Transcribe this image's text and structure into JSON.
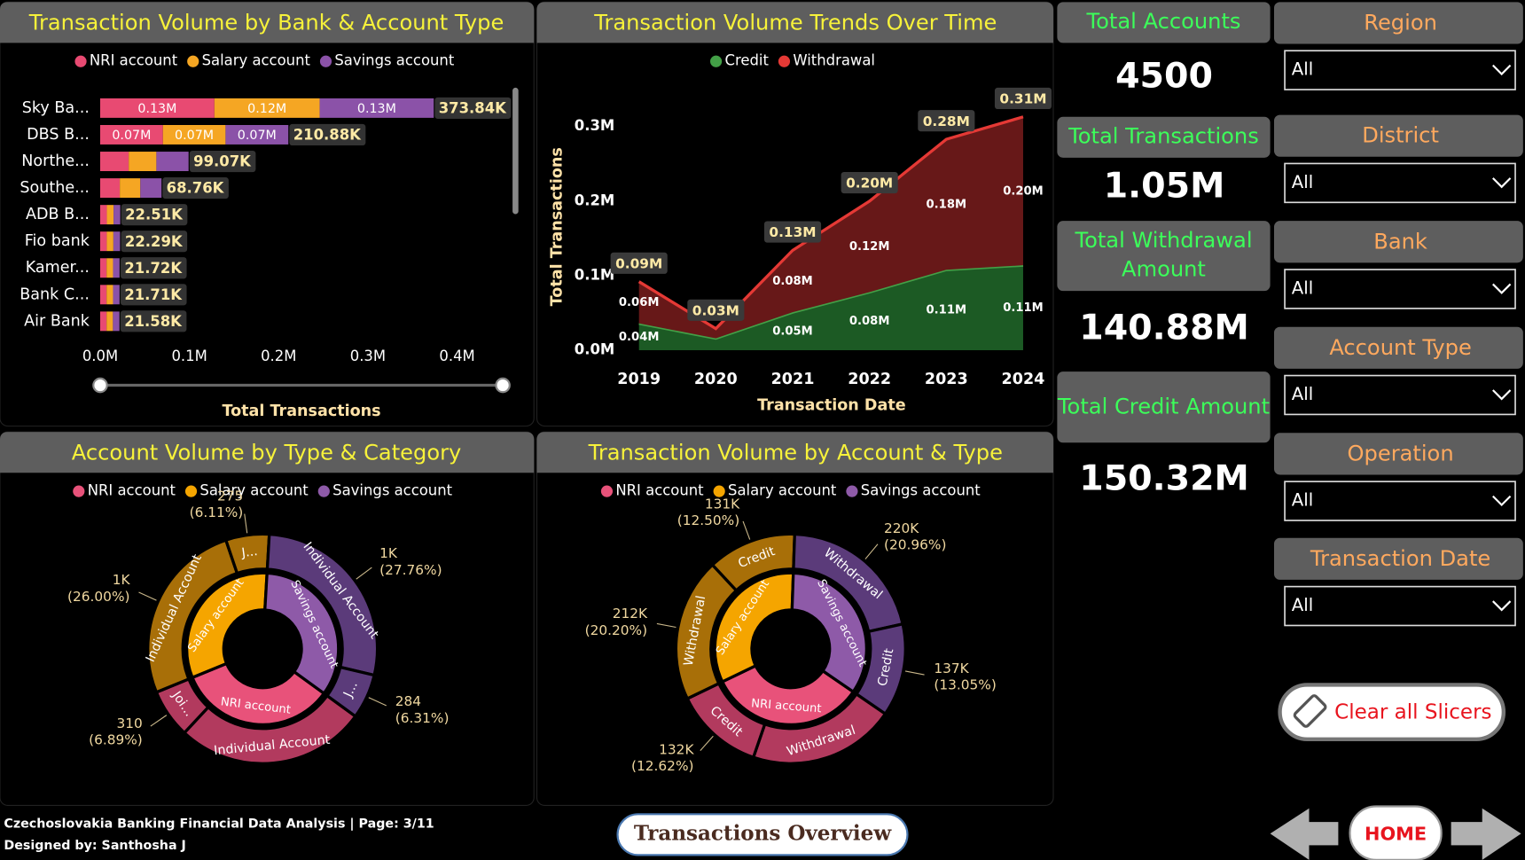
{
  "chart_data": [
    {
      "type": "stacked-bar-h",
      "title": "Transaction Volume by Bank & Account Type",
      "categories": [
        "Sky Ba...",
        "DBS B...",
        "Northe...",
        "Southe...",
        "ADB B...",
        "Fio bank",
        "Kamer...",
        "Bank C...",
        "Air Bank"
      ],
      "series": [
        {
          "name": "NRI account",
          "color": "#e84a72",
          "values": [
            128000,
            70300,
            32000,
            22000,
            7500,
            7400,
            7200,
            7200,
            7200
          ],
          "value_labels": [
            "0.13M",
            "0.07M",
            null,
            null,
            null,
            null,
            null,
            null,
            null
          ]
        },
        {
          "name": "Salary account",
          "color": "#f5a623",
          "values": [
            118000,
            70200,
            31000,
            23000,
            7500,
            7400,
            7200,
            7200,
            7100
          ],
          "value_labels": [
            "0.12M",
            "0.07M",
            null,
            null,
            null,
            null,
            null,
            null,
            null
          ]
        },
        {
          "name": "Savings account",
          "color": "#8b52a8",
          "values": [
            127840,
            70380,
            36070,
            23760,
            7510,
            7490,
            7320,
            7310,
            7280
          ],
          "value_labels": [
            "0.13M",
            "0.07M",
            null,
            null,
            null,
            null,
            null,
            null,
            null
          ]
        }
      ],
      "totals": [
        373840,
        210880,
        99070,
        68760,
        22510,
        22290,
        21720,
        21710,
        21580
      ],
      "total_labels": [
        "373.84K",
        "210.88K",
        "99.07K",
        "68.76K",
        "22.51K",
        "22.29K",
        "21.72K",
        "21.71K",
        "21.58K"
      ],
      "xlim": [
        0,
        400000
      ],
      "xticks": [
        {
          "value": 0,
          "label": "0.0M"
        },
        {
          "value": 100000,
          "label": "0.1M"
        },
        {
          "value": 200000,
          "label": "0.2M"
        },
        {
          "value": 300000,
          "label": "0.3M"
        },
        {
          "value": 400000,
          "label": "0.4M"
        }
      ],
      "x_label": "Total Transactions",
      "legend": "top"
    },
    {
      "type": "stacked-area",
      "title": "Transaction Volume Trends Over Time",
      "categories": [
        "2019",
        "2020",
        "2021",
        "2022",
        "2023",
        "2024"
      ],
      "series": [
        {
          "name": "Credit",
          "color": "#43a047",
          "fill": "#1c5a24",
          "values": [
            36000,
            16000,
            51000,
            78000,
            108000,
            114000
          ],
          "value_labels": [
            "0.04M",
            null,
            "0.05M",
            "0.08M",
            "0.11M",
            "0.11M"
          ]
        },
        {
          "name": "Withdrawal",
          "color": "#e53935",
          "fill": "#671818",
          "values": [
            56000,
            13000,
            83000,
            122000,
            175000,
            199000
          ],
          "value_labels": [
            "0.06M",
            null,
            "0.08M",
            "0.12M",
            "0.18M",
            "0.20M"
          ]
        }
      ],
      "totals": [
        92000,
        29000,
        134000,
        200000,
        283000,
        313000
      ],
      "total_labels": [
        "0.09M",
        "0.03M",
        "0.13M",
        "0.20M",
        "0.28M",
        "0.31M"
      ],
      "ylim": [
        0,
        330000
      ],
      "yticks": [
        {
          "value": 0,
          "label": "0.0M"
        },
        {
          "value": 100000,
          "label": "0.1M"
        },
        {
          "value": 200000,
          "label": "0.2M"
        },
        {
          "value": 300000,
          "label": "0.3M"
        }
      ],
      "x_label": "Transaction Date",
      "y_label": "Total Transactions",
      "legend": "top"
    },
    {
      "type": "sunburst",
      "title": "Account Volume by Type & Category",
      "series": [
        {
          "name": "NRI account",
          "color": "#e8527a",
          "outer_color": "#b23a5e",
          "children": [
            {
              "label": "Individual Account",
              "value": 1212
            },
            {
              "label": "Joi...",
              "value": 310,
              "share_label": "(6.89%)"
            }
          ]
        },
        {
          "name": "Salary account",
          "color": "#f5a500",
          "outer_color": "#a86f08",
          "children": [
            {
              "label": "Individual Account",
              "value": 1170,
              "value_label": "1K",
              "share_label": "(26.00%)"
            },
            {
              "label": "J...",
              "value": 275,
              "share_label": "(6.11%)"
            }
          ]
        },
        {
          "name": "Savings account",
          "color": "#8e5aa8",
          "outer_color": "#5b3b7a",
          "children": [
            {
              "label": "Individual Account",
              "value": 1249,
              "value_label": "1K",
              "share_label": "(27.76%)"
            },
            {
              "label": "J...",
              "value": 284,
              "share_label": "(6.31%)"
            }
          ]
        }
      ],
      "legend": "top"
    },
    {
      "type": "sunburst",
      "title": "Transaction Volume by Account & Type",
      "series": [
        {
          "name": "NRI account",
          "color": "#e8527a",
          "outer_color": "#b23a5e",
          "children": [
            {
              "label": "Withdrawal",
              "value": 217000
            },
            {
              "label": "Credit",
              "value": 132000,
              "value_label": "132K",
              "share_label": "(12.62%)"
            }
          ]
        },
        {
          "name": "Salary account",
          "color": "#f5a500",
          "outer_color": "#a86f08",
          "children": [
            {
              "label": "Withdrawal",
              "value": 212000,
              "value_label": "212K",
              "share_label": "(20.20%)"
            },
            {
              "label": "Credit",
              "value": 131000,
              "value_label": "131K",
              "share_label": "(12.50%)"
            }
          ]
        },
        {
          "name": "Savings account",
          "color": "#8e5aa8",
          "outer_color": "#5b3b7a",
          "children": [
            {
              "label": "Withdrawal",
              "value": 220000,
              "value_label": "220K",
              "share_label": "(20.96%)"
            },
            {
              "label": "Credit",
              "value": 137000,
              "value_label": "137K",
              "share_label": "(13.05%)"
            }
          ]
        }
      ],
      "legend": "top"
    }
  ],
  "kpis": [
    {
      "title": "Total Accounts",
      "value": "4500"
    },
    {
      "title": "Total Transactions",
      "value": "1.05M"
    },
    {
      "title": "Total Withdrawal Amount",
      "value": "140.88M"
    },
    {
      "title": "Total Credit Amount",
      "value": "150.32M"
    }
  ],
  "slicers": [
    {
      "title": "Region",
      "value": "All"
    },
    {
      "title": "District",
      "value": "All"
    },
    {
      "title": "Bank",
      "value": "All"
    },
    {
      "title": "Account Type",
      "value": "All"
    },
    {
      "title": "Operation",
      "value": "All"
    },
    {
      "title": "Transaction Date",
      "value": "All"
    }
  ],
  "buttons": {
    "clear": "Clear all Slicers",
    "page": "Transactions Overview",
    "home": "HOME"
  },
  "footer": {
    "line1": "Czechoslovakia Banking Financial Data Analysis | Page: 3/11",
    "line2": "Designed by: Santhosha J"
  }
}
